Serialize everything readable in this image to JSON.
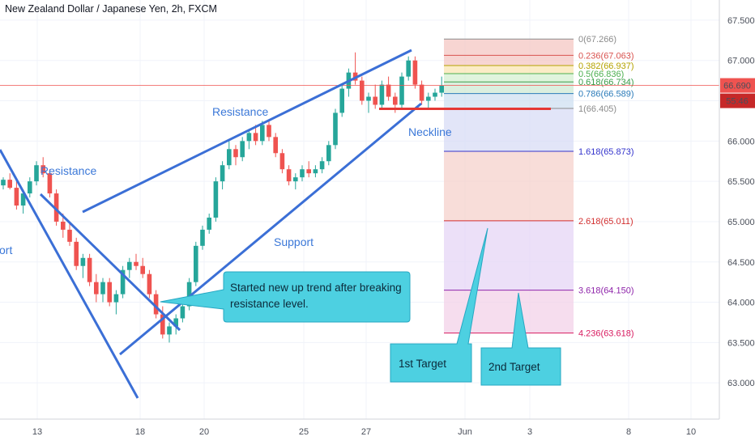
{
  "chart_data": {
    "type": "candlestick",
    "title": "New Zealand Dollar / Japanese Yen, 2h, FXCM",
    "ylim": [
      62.55,
      67.75
    ],
    "price_ticks": [
      "67.500",
      "67.000",
      "66.500",
      "66.000",
      "65.500",
      "65.000",
      "64.500",
      "64.000",
      "63.500",
      "63.000"
    ],
    "date_ticks": [
      "13",
      "18",
      "20",
      "25",
      "27",
      "Jun",
      "3",
      "8",
      "10"
    ],
    "current_price": "66.690",
    "countdown": "55:46",
    "candles": [
      [
        65.45,
        65.55,
        65.4,
        65.52
      ],
      [
        65.52,
        65.6,
        65.4,
        65.42
      ],
      [
        65.42,
        65.5,
        65.15,
        65.2
      ],
      [
        65.2,
        65.4,
        65.1,
        65.35
      ],
      [
        65.35,
        65.55,
        65.3,
        65.5
      ],
      [
        65.5,
        65.75,
        65.45,
        65.7
      ],
      [
        65.7,
        65.8,
        65.55,
        65.6
      ],
      [
        65.6,
        65.65,
        65.3,
        65.35
      ],
      [
        65.35,
        65.4,
        64.95,
        65.0
      ],
      [
        65.0,
        65.1,
        64.8,
        64.9
      ],
      [
        64.9,
        65.0,
        64.7,
        64.75
      ],
      [
        64.75,
        64.8,
        64.4,
        64.45
      ],
      [
        64.45,
        64.6,
        64.3,
        64.55
      ],
      [
        64.55,
        64.6,
        64.2,
        64.25
      ],
      [
        64.25,
        64.35,
        64.0,
        64.1
      ],
      [
        64.1,
        64.3,
        64.0,
        64.25
      ],
      [
        64.25,
        64.3,
        63.95,
        64.0
      ],
      [
        64.0,
        64.15,
        63.85,
        64.1
      ],
      [
        64.1,
        64.45,
        64.05,
        64.4
      ],
      [
        64.4,
        64.55,
        64.3,
        64.5
      ],
      [
        64.5,
        64.6,
        64.4,
        64.45
      ],
      [
        64.45,
        64.55,
        64.3,
        64.35
      ],
      [
        64.35,
        64.4,
        64.05,
        64.1
      ],
      [
        64.1,
        64.15,
        63.8,
        63.85
      ],
      [
        63.85,
        63.95,
        63.55,
        63.6
      ],
      [
        63.6,
        63.75,
        63.5,
        63.7
      ],
      [
        63.7,
        63.85,
        63.6,
        63.8
      ],
      [
        63.8,
        64.0,
        63.75,
        63.95
      ],
      [
        63.95,
        64.3,
        63.9,
        64.25
      ],
      [
        64.25,
        64.75,
        64.2,
        64.7
      ],
      [
        64.7,
        64.95,
        64.65,
        64.9
      ],
      [
        64.9,
        65.1,
        64.85,
        65.05
      ],
      [
        65.05,
        65.55,
        65.0,
        65.5
      ],
      [
        65.5,
        65.75,
        65.4,
        65.7
      ],
      [
        65.7,
        66.0,
        65.65,
        65.9
      ],
      [
        65.9,
        65.95,
        65.7,
        65.8
      ],
      [
        65.8,
        66.05,
        65.75,
        66.0
      ],
      [
        66.0,
        66.15,
        65.9,
        66.1
      ],
      [
        66.1,
        66.2,
        65.95,
        66.0
      ],
      [
        66.0,
        66.25,
        65.95,
        66.2
      ],
      [
        66.2,
        66.25,
        66.0,
        66.05
      ],
      [
        66.05,
        66.1,
        65.8,
        65.85
      ],
      [
        65.85,
        65.9,
        65.6,
        65.65
      ],
      [
        65.65,
        65.7,
        65.45,
        65.5
      ],
      [
        65.5,
        65.6,
        65.4,
        65.55
      ],
      [
        65.55,
        65.7,
        65.5,
        65.65
      ],
      [
        65.65,
        65.75,
        65.55,
        65.6
      ],
      [
        65.6,
        65.7,
        65.55,
        65.65
      ],
      [
        65.65,
        65.8,
        65.6,
        65.75
      ],
      [
        65.75,
        66.0,
        65.7,
        65.95
      ],
      [
        65.95,
        66.4,
        65.9,
        66.35
      ],
      [
        66.35,
        66.7,
        66.3,
        66.65
      ],
      [
        66.65,
        66.9,
        66.55,
        66.85
      ],
      [
        66.85,
        67.1,
        66.7,
        66.75
      ],
      [
        66.75,
        66.8,
        66.45,
        66.5
      ],
      [
        66.5,
        66.6,
        66.35,
        66.55
      ],
      [
        66.55,
        66.7,
        66.4,
        66.45
      ],
      [
        66.45,
        66.75,
        66.4,
        66.7
      ],
      [
        66.7,
        66.8,
        66.5,
        66.55
      ],
      [
        66.55,
        66.6,
        66.35,
        66.45
      ],
      [
        66.45,
        66.85,
        66.4,
        66.8
      ],
      [
        66.8,
        67.05,
        66.75,
        67.0
      ],
      [
        67.0,
        67.05,
        66.65,
        66.7
      ],
      [
        66.7,
        66.75,
        66.45,
        66.5
      ],
      [
        66.5,
        66.6,
        66.4,
        66.55
      ],
      [
        66.55,
        66.65,
        66.5,
        66.6
      ],
      [
        66.6,
        66.8,
        66.55,
        66.69
      ]
    ],
    "fibonacci": [
      {
        "level": "0",
        "value": "67.266",
        "label": "0(67.266)",
        "color": "#8b8b8b"
      },
      {
        "level": "0.236",
        "value": "67.063",
        "label": "0.236(67.063)",
        "color": "#d9534f"
      },
      {
        "level": "0.382",
        "value": "66.937",
        "label": "0.382(66.937)",
        "color": "#b5a300"
      },
      {
        "level": "0.5",
        "value": "66.836",
        "label": "0.5(66.836)",
        "color": "#4caf50"
      },
      {
        "level": "0.618",
        "value": "66.734",
        "label": "0.618(66.734)",
        "color": "#3a9e4a"
      },
      {
        "level": "0.786",
        "value": "66.589",
        "label": "0.786(66.589)",
        "color": "#2b7bb9"
      },
      {
        "level": "1",
        "value": "66.405",
        "label": "1(66.405)",
        "color": "#8b8b8b"
      },
      {
        "level": "1.618",
        "value": "65.873",
        "label": "1.618(65.873)",
        "color": "#3333cc"
      },
      {
        "level": "2.618",
        "value": "65.011",
        "label": "2.618(65.011)",
        "color": "#d32f2f"
      },
      {
        "level": "3.618",
        "value": "64.150",
        "label": "3.618(64.150)",
        "color": "#8e24aa"
      },
      {
        "level": "4.236",
        "value": "63.618",
        "label": "4.236(63.618)",
        "color": "#d81b60"
      }
    ],
    "annotations": {
      "resistance_left": "Resistance",
      "resistance_upper": "Resistance",
      "support_left": "ort",
      "support": "Support",
      "neckline": "Neckline",
      "callout": [
        "Started new up trend after breaking",
        "resistance level."
      ],
      "target1": "1st Target",
      "target2": "2nd Target"
    }
  }
}
